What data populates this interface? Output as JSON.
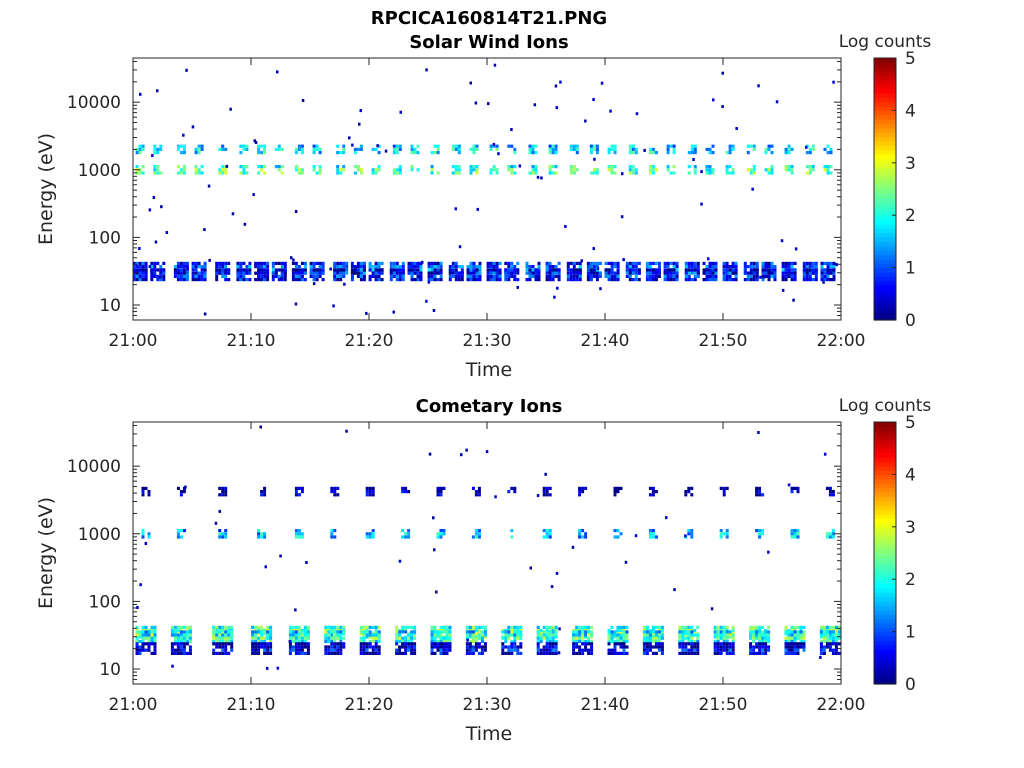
{
  "figure": {
    "title": "RPCICA160814T21.PNG"
  },
  "chart_data": [
    {
      "type": "heatmap",
      "title": "Solar Wind Ions",
      "xlabel": "Time",
      "ylabel": "Energy (eV)",
      "x_ticks": [
        "21:00",
        "21:10",
        "21:20",
        "21:30",
        "21:40",
        "21:50",
        "22:00"
      ],
      "x_range_minutes": [
        0,
        60
      ],
      "y_scale": "log",
      "y_ticks": [
        "10",
        "100",
        "1000",
        "10000"
      ],
      "y_tick_values": [
        10,
        100,
        1000,
        10000
      ],
      "ylim": [
        6,
        45000
      ],
      "colorbar": {
        "label": "Log counts",
        "ticks": [
          "0",
          "1",
          "2",
          "3",
          "4",
          "5"
        ],
        "range": [
          0,
          5
        ],
        "colormap": "jet"
      },
      "sweep_minutes": [
        0.6,
        2.1,
        4.1,
        5.6,
        7.6,
        9.4,
        10.9,
        12.4,
        14.1,
        15.6,
        17.6,
        19.1,
        20.6,
        22.4,
        23.9,
        25.6,
        27.4,
        28.9,
        30.6,
        32.1,
        33.9,
        35.6,
        37.4,
        39.1,
        40.6,
        42.4,
        44.1,
        45.6,
        47.4,
        48.9,
        50.6,
        52.4,
        53.9,
        55.6,
        57.4,
        58.9
      ],
      "bands": [
        {
          "energy_eV": 1000,
          "log_counts": 2.4
        },
        {
          "energy_eV": 2000,
          "log_counts": 1.9
        },
        {
          "energy_eV": 35,
          "log_counts": 1.2
        },
        {
          "energy_eV": 28,
          "log_counts": 0.8
        }
      ]
    },
    {
      "type": "heatmap",
      "title": "Cometary Ions",
      "xlabel": "Time",
      "ylabel": "Energy (eV)",
      "x_ticks": [
        "21:00",
        "21:10",
        "21:20",
        "21:30",
        "21:40",
        "21:50",
        "22:00"
      ],
      "x_range_minutes": [
        0,
        60
      ],
      "y_scale": "log",
      "y_ticks": [
        "10",
        "100",
        "1000",
        "10000"
      ],
      "y_tick_values": [
        10,
        100,
        1000,
        10000
      ],
      "ylim": [
        6,
        45000
      ],
      "colorbar": {
        "label": "Log counts",
        "ticks": [
          "0",
          "1",
          "2",
          "3",
          "4",
          "5"
        ],
        "range": [
          0,
          5
        ],
        "colormap": "jet"
      },
      "sweep_minutes": [
        1.1,
        4.1,
        7.6,
        10.9,
        14.1,
        17.1,
        20.1,
        23.1,
        26.1,
        29.1,
        32.1,
        35.1,
        38.1,
        41.1,
        44.1,
        47.1,
        50.1,
        53.1,
        56.1,
        59.1
      ],
      "bands": [
        {
          "energy_eV": 1000,
          "log_counts": 1.7
        },
        {
          "energy_eV": 4200,
          "log_counts": 0.3
        },
        {
          "energy_eV": 35,
          "log_counts": 2.6
        },
        {
          "energy_eV": 30,
          "log_counts": 2.2
        },
        {
          "energy_eV": 20,
          "log_counts": 0.6
        }
      ]
    }
  ]
}
